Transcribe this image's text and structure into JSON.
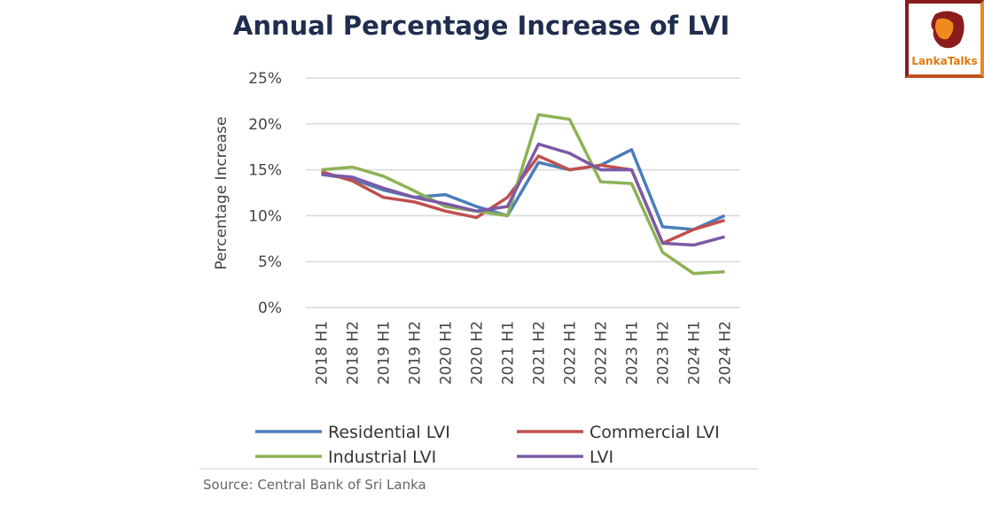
{
  "chart_data": {
    "type": "line",
    "title": "Annual Percentage Increase of LVI",
    "ylabel": "Percentage Increase",
    "xlabel": "",
    "ylim": [
      0,
      25
    ],
    "yticks": [
      "0%",
      "5%",
      "10%",
      "15%",
      "20%",
      "25%"
    ],
    "grid": true,
    "legend_placement": "bottom",
    "categories": [
      "2018 H1",
      "2018 H2",
      "2019 H1",
      "2019 H2",
      "2020 H1",
      "2020 H2",
      "2021 H1",
      "2021 H2",
      "2022 H1",
      "2022 H2",
      "2023 H1",
      "2023 H2",
      "2024 H1",
      "2024 H2"
    ],
    "series": [
      {
        "name": "Residential LVI",
        "color": "#4a7ebb",
        "values": [
          14.5,
          14.0,
          12.8,
          12.0,
          12.3,
          11.0,
          10.0,
          15.8,
          15.0,
          15.5,
          17.2,
          8.8,
          8.5,
          10.0
        ]
      },
      {
        "name": "Commercial LVI",
        "color": "#c0504d",
        "values": [
          14.8,
          13.8,
          12.0,
          11.5,
          10.5,
          9.8,
          12.0,
          16.5,
          15.0,
          15.5,
          15.0,
          7.0,
          8.5,
          9.5
        ]
      },
      {
        "name": "Industrial LVI",
        "color": "#8db255",
        "values": [
          15.0,
          15.3,
          14.3,
          12.7,
          11.0,
          10.5,
          10.0,
          21.0,
          20.5,
          13.7,
          13.5,
          6.0,
          3.7,
          3.9
        ]
      },
      {
        "name": "LVI",
        "color": "#7b5aa6",
        "values": [
          14.5,
          14.2,
          13.0,
          12.0,
          11.3,
          10.5,
          11.0,
          17.8,
          16.8,
          15.0,
          15.0,
          7.0,
          6.8,
          7.7
        ]
      }
    ]
  },
  "source": "Source: Central Bank of Sri Lanka",
  "logo": {
    "text_a": "Lanka",
    "text_b": "Talks"
  }
}
